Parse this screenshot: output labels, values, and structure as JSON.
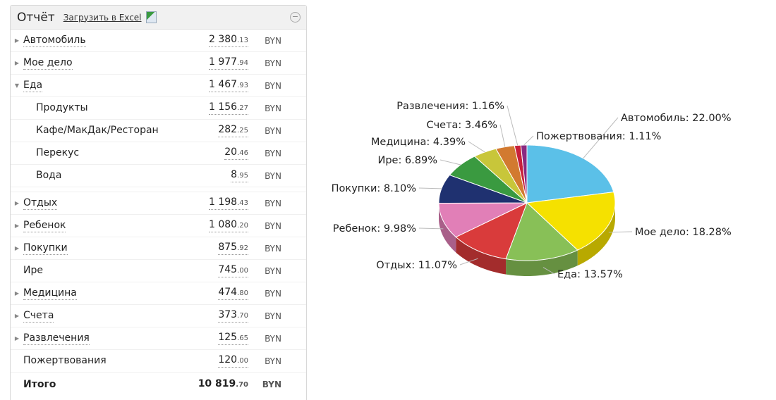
{
  "header": {
    "title": "Отчёт",
    "excel_link": "Загрузить в Excel"
  },
  "rows": [
    {
      "label": "Автомобиль",
      "int": "2 380",
      "dec": ".13",
      "cur": "BYN",
      "arrow": "right"
    },
    {
      "label": "Мое дело",
      "int": "1 977",
      "dec": ".94",
      "cur": "BYN",
      "arrow": "right"
    },
    {
      "label": "Еда",
      "int": "1 467",
      "dec": ".93",
      "cur": "BYN",
      "arrow": "down"
    },
    {
      "label": "Продукты",
      "int": "1 156",
      "dec": ".27",
      "cur": "BYN",
      "child": true
    },
    {
      "label": "Кафе/МакДак/Ресторан",
      "int": "282",
      "dec": ".25",
      "cur": "BYN",
      "child": true
    },
    {
      "label": "Перекус",
      "int": "20",
      "dec": ".46",
      "cur": "BYN",
      "child": true
    },
    {
      "label": "Вода",
      "int": "8",
      "dec": ".95",
      "cur": "BYN",
      "child": true,
      "gapAfter": true
    },
    {
      "label": "Отдых",
      "int": "1 198",
      "dec": ".43",
      "cur": "BYN",
      "arrow": "right"
    },
    {
      "label": "Ребенок",
      "int": "1 080",
      "dec": ".20",
      "cur": "BYN",
      "arrow": "right"
    },
    {
      "label": "Покупки",
      "int": "875",
      "dec": ".92",
      "cur": "BYN",
      "arrow": "right"
    },
    {
      "label": "Ире",
      "int": "745",
      "dec": ".00",
      "cur": "BYN"
    },
    {
      "label": "Медицина",
      "int": "474",
      "dec": ".80",
      "cur": "BYN",
      "arrow": "right"
    },
    {
      "label": "Счета",
      "int": "373",
      "dec": ".70",
      "cur": "BYN",
      "arrow": "right"
    },
    {
      "label": "Развлечения",
      "int": "125",
      "dec": ".65",
      "cur": "BYN",
      "arrow": "right"
    },
    {
      "label": "Пожертвования",
      "int": "120",
      "dec": ".00",
      "cur": "BYN"
    }
  ],
  "total": {
    "label": "Итого",
    "int": "10 819",
    "dec": ".70",
    "cur": "BYN"
  },
  "chart_data": {
    "type": "pie",
    "slices": [
      {
        "name": "Автомобиль",
        "value": 22.0,
        "color": "#5bc0e8"
      },
      {
        "name": "Мое дело",
        "value": 18.28,
        "color": "#f5e100"
      },
      {
        "name": "Еда",
        "value": 13.57,
        "color": "#88c057"
      },
      {
        "name": "Отдых",
        "value": 11.07,
        "color": "#d93b3b"
      },
      {
        "name": "Ребенок",
        "value": 9.98,
        "color": "#e17fb7"
      },
      {
        "name": "Покупки",
        "value": 8.1,
        "color": "#1f3170"
      },
      {
        "name": "Ире",
        "value": 6.89,
        "color": "#3a9a40"
      },
      {
        "name": "Медицина",
        "value": 4.39,
        "color": "#c8c63a"
      },
      {
        "name": "Счета",
        "value": 3.46,
        "color": "#d27a30"
      },
      {
        "name": "Развлечения",
        "value": 1.16,
        "color": "#c8203a"
      },
      {
        "name": "Пожертвования",
        "value": 1.11,
        "color": "#8a2a80"
      }
    ]
  }
}
